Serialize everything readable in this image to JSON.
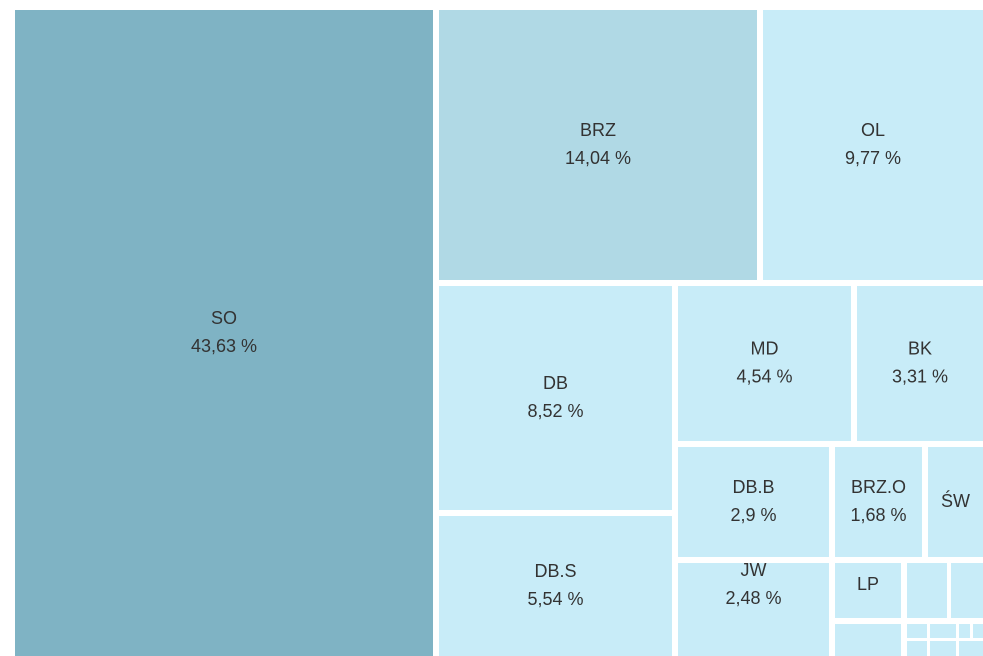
{
  "chart_data": {
    "type": "treemap",
    "categories": [
      "SO",
      "BRZ",
      "OL",
      "DB",
      "DB.S",
      "MD",
      "BK",
      "DB.B",
      "JW",
      "BRZ.O",
      "ŚW",
      "LP"
    ],
    "values": [
      43.63,
      14.04,
      9.77,
      8.52,
      5.54,
      4.54,
      3.31,
      2.9,
      2.48,
      1.68,
      1.0,
      0.7
    ],
    "value_labels": [
      "43,63 %",
      "14,04 %",
      "9,77 %",
      "8,52 %",
      "5,54 %",
      "4,54 %",
      "3,31 %",
      "2,9 %",
      "2,48 %",
      "1,68 %",
      null,
      null
    ],
    "colors": [
      "#7fb3c4",
      "#b0d9e5",
      "#c8ecf8",
      "#c8ecf8",
      "#c8ecf8",
      "#c8ecf8",
      "#c8ecf8",
      "#c8ecf8",
      "#c8ecf8",
      "#c8ecf8",
      "#c8ecf8",
      "#c8ecf8"
    ]
  }
}
